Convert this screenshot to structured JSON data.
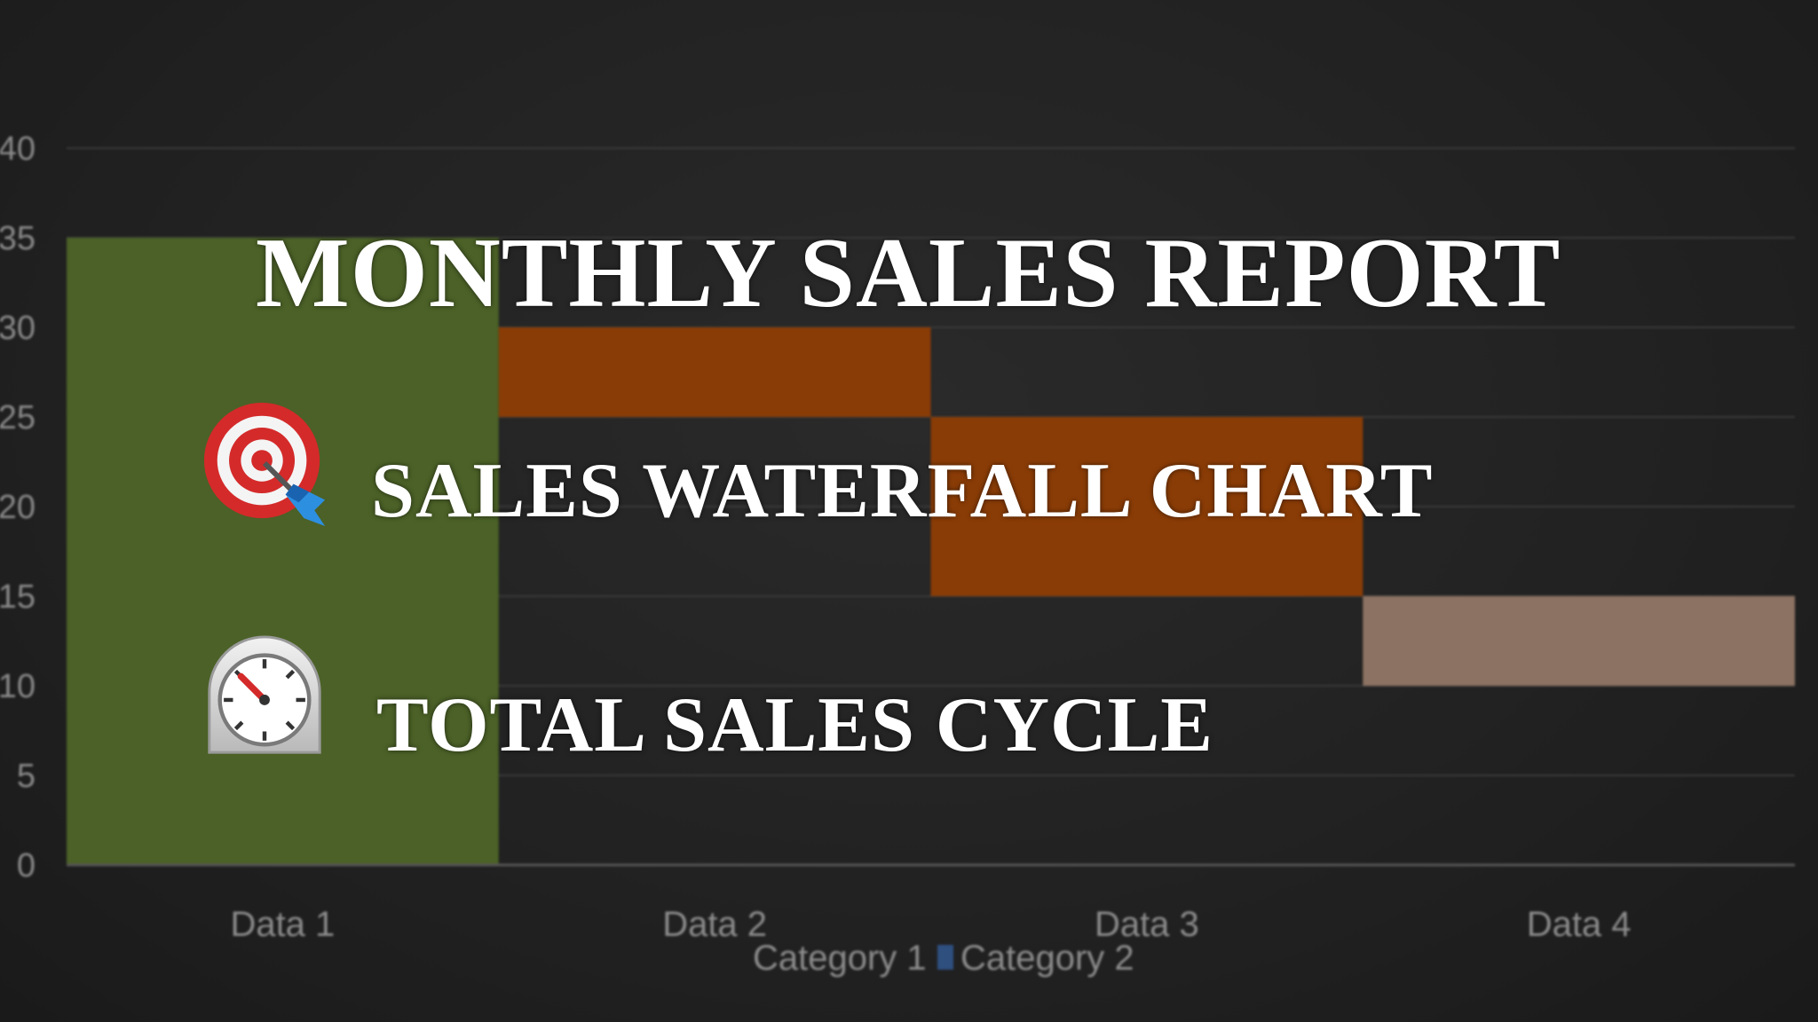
{
  "overlay": {
    "title": "MONTHLY SALES REPORT",
    "line_1": "SALES WATERFALL CHART",
    "line_2": "TOTAL SALES CYCLE",
    "icons": [
      "target-icon",
      "timer-icon"
    ]
  },
  "chart_data": {
    "type": "bar",
    "subtype": "waterfall",
    "categories": [
      "Data 1",
      "Data 2",
      "Data 3",
      "Data 4"
    ],
    "bars": [
      {
        "category": "Data 1",
        "base": 0,
        "top": 35,
        "color": "#4b6127"
      },
      {
        "category": "Data 2",
        "base": 25,
        "top": 30,
        "color": "#8a3c06"
      },
      {
        "category": "Data 3",
        "base": 15,
        "top": 25,
        "color": "#8a3c06"
      },
      {
        "category": "Data 4",
        "base": 10,
        "top": 15,
        "color": "#8c7262"
      }
    ],
    "y_ticks": [
      "0",
      "5",
      "10",
      "15",
      "20",
      "25",
      "30",
      "35",
      "40"
    ],
    "ylim": [
      0,
      40
    ],
    "grid": true,
    "legend": {
      "position": "bottom",
      "entries": [
        {
          "name": "Category 1",
          "color": ""
        },
        {
          "name": "Category 2",
          "color": "#2f4f7f"
        }
      ]
    },
    "title": "",
    "xlabel": "",
    "ylabel": ""
  }
}
